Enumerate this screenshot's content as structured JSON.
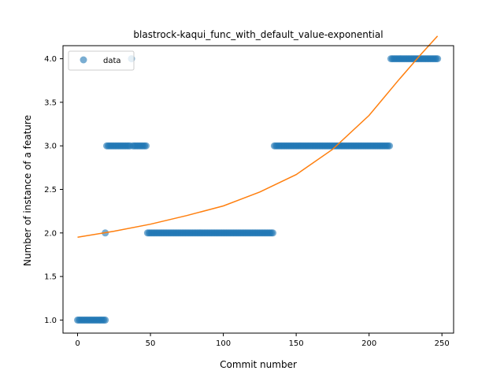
{
  "chart_data": {
    "type": "scatter",
    "title": "blastrock-kaqui_func_with_default_value-exponential",
    "xlabel": "Commit number",
    "ylabel": "Number of instance of a feature",
    "xlim": [
      -10,
      258
    ],
    "ylim": [
      0.85,
      4.15
    ],
    "xticks": [
      0,
      50,
      100,
      150,
      200,
      250
    ],
    "yticks": [
      1.0,
      1.5,
      2.0,
      2.5,
      3.0,
      3.5,
      4.0
    ],
    "grid": false,
    "legend": {
      "position": "top-left",
      "entries": [
        "data"
      ]
    },
    "colors": {
      "data": "#1f77b4",
      "fit": "#ff7f0e"
    },
    "series": [
      {
        "name": "data",
        "kind": "scatter",
        "segments": [
          {
            "x_start": 0,
            "x_end": 19,
            "y": 1.0
          },
          {
            "x_start": 19,
            "x_end": 19,
            "y": 2.0
          },
          {
            "x_start": 20,
            "x_end": 36,
            "y": 3.0
          },
          {
            "x_start": 37,
            "x_end": 37,
            "y": 4.0
          },
          {
            "x_start": 38,
            "x_end": 47,
            "y": 3.0
          },
          {
            "x_start": 48,
            "x_end": 134,
            "y": 2.0
          },
          {
            "x_start": 135,
            "x_end": 214,
            "y": 3.0
          },
          {
            "x_start": 215,
            "x_end": 247,
            "y": 4.0
          }
        ]
      },
      {
        "kind": "line",
        "x": [
          0,
          25,
          50,
          75,
          100,
          125,
          150,
          175,
          200,
          220,
          235,
          247
        ],
        "y": [
          1.95,
          2.02,
          2.1,
          2.2,
          2.31,
          2.47,
          2.67,
          2.96,
          3.35,
          3.75,
          4.04,
          4.26
        ]
      }
    ]
  }
}
